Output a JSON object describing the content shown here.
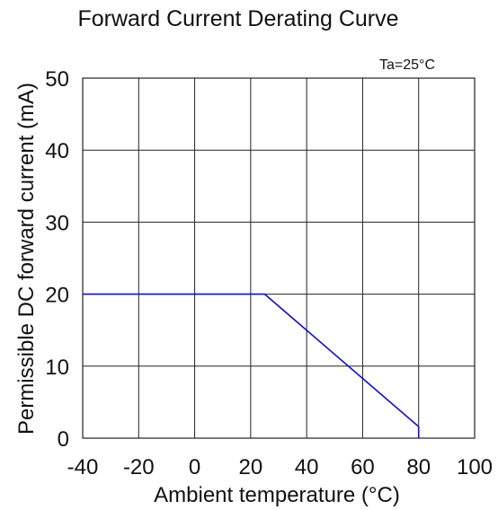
{
  "chart_data": {
    "type": "line",
    "title": "Forward Current Derating Curve",
    "annotation": "Ta=25°C",
    "xlabel": "Ambient temperature (°C)",
    "ylabel": "Permissible DC forward current (mA)",
    "xlim": [
      -40,
      100
    ],
    "ylim": [
      0,
      50
    ],
    "x_ticks": [
      -40,
      -20,
      0,
      20,
      40,
      60,
      80,
      100
    ],
    "y_ticks": [
      0,
      10,
      20,
      30,
      40,
      50
    ],
    "grid": true,
    "series": [
      {
        "color": "#1010d0",
        "points": [
          [
            -40,
            20
          ],
          [
            25,
            20
          ],
          [
            80,
            1.6
          ],
          [
            80,
            0
          ]
        ]
      }
    ]
  }
}
